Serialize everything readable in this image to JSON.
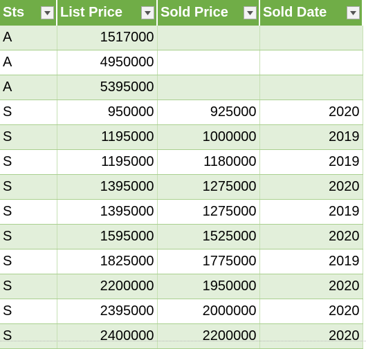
{
  "table": {
    "headers": [
      "Sts",
      "List Price",
      "Sold Price",
      "Sold Date"
    ],
    "rows": [
      [
        "A",
        "1517000",
        "",
        ""
      ],
      [
        "A",
        "4950000",
        "",
        ""
      ],
      [
        "A",
        "5395000",
        "",
        ""
      ],
      [
        "S",
        "950000",
        "925000",
        "2020"
      ],
      [
        "S",
        "1195000",
        "1000000",
        "2019"
      ],
      [
        "S",
        "1195000",
        "1180000",
        "2019"
      ],
      [
        "S",
        "1395000",
        "1275000",
        "2020"
      ],
      [
        "S",
        "1395000",
        "1275000",
        "2019"
      ],
      [
        "S",
        "1595000",
        "1525000",
        "2020"
      ],
      [
        "S",
        "1825000",
        "1775000",
        "2019"
      ],
      [
        "S",
        "2200000",
        "1950000",
        "2020"
      ],
      [
        "S",
        "2395000",
        "2000000",
        "2020"
      ],
      [
        "S",
        "2400000",
        "2200000",
        "2020"
      ]
    ]
  },
  "colors": {
    "header_bg": "#70ad47",
    "band_bg": "#e2efda",
    "plain_bg": "#ffffff"
  },
  "icons": {
    "filter": "dropdown-arrow-icon"
  }
}
